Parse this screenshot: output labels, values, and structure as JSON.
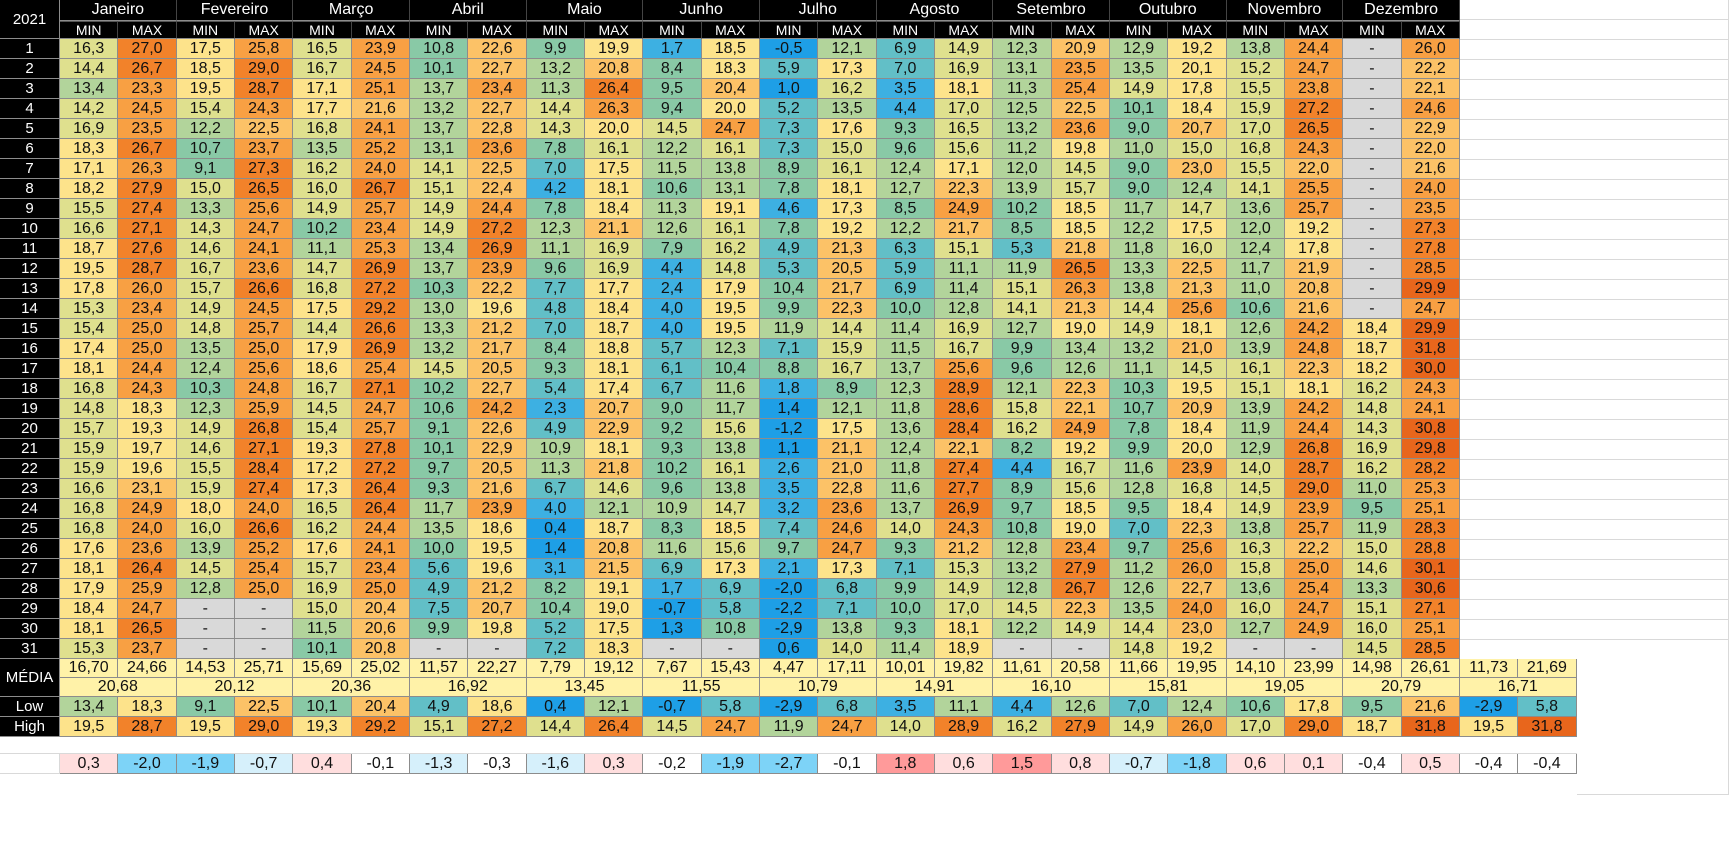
{
  "year": "2021",
  "min_label": "MIN",
  "max_label": "MAX",
  "year_header": "ANO",
  "media_label": "MÉDIA",
  "low_label": "Low",
  "high_label": "High",
  "missing": "-",
  "months": [
    {
      "name": "Janeiro",
      "min": [
        "16,3",
        "14,4",
        "13,4",
        "14,2",
        "16,9",
        "18,3",
        "17,1",
        "18,2",
        "15,5",
        "16,6",
        "18,7",
        "19,5",
        "17,8",
        "15,3",
        "15,4",
        "17,4",
        "18,1",
        "16,8",
        "14,8",
        "15,7",
        "15,9",
        "15,9",
        "16,6",
        "16,8",
        "16,8",
        "17,6",
        "18,1",
        "17,9",
        "18,4",
        "18,1",
        "15,3"
      ],
      "max": [
        "27,0",
        "26,7",
        "23,3",
        "24,5",
        "23,5",
        "26,7",
        "26,3",
        "27,9",
        "27,4",
        "27,1",
        "27,6",
        "28,7",
        "26,0",
        "23,4",
        "25,0",
        "25,0",
        "24,4",
        "24,3",
        "18,3",
        "19,3",
        "19,7",
        "19,6",
        "23,1",
        "24,9",
        "24,0",
        "23,6",
        "26,4",
        "25,9",
        "24,7",
        "26,5",
        "23,7"
      ],
      "avg_min": "16,70",
      "avg_max": "24,66",
      "avg": "20,68",
      "low_min": "13,4",
      "low_max": "18,3",
      "high_min": "19,5",
      "high_max": "28,7",
      "diff_min": "0,3",
      "diff_max": "-2,0"
    },
    {
      "name": "Fevereiro",
      "min": [
        "17,5",
        "18,5",
        "19,5",
        "15,4",
        "12,2",
        "10,7",
        "9,1",
        "15,0",
        "13,3",
        "14,3",
        "14,6",
        "16,7",
        "15,7",
        "14,9",
        "14,8",
        "13,5",
        "12,4",
        "10,3",
        "12,3",
        "14,9",
        "14,6",
        "15,5",
        "15,9",
        "18,0",
        "16,0",
        "13,9",
        "14,5",
        "12,8",
        "-",
        "-",
        "-"
      ],
      "max": [
        "25,8",
        "29,0",
        "28,7",
        "24,3",
        "22,5",
        "23,7",
        "27,3",
        "26,5",
        "25,6",
        "24,7",
        "24,1",
        "23,6",
        "26,6",
        "24,5",
        "25,7",
        "25,0",
        "25,6",
        "24,8",
        "25,9",
        "26,8",
        "27,1",
        "28,4",
        "27,4",
        "24,0",
        "26,6",
        "25,2",
        "25,4",
        "25,0",
        "-",
        "-",
        "-"
      ],
      "avg_min": "14,53",
      "avg_max": "25,71",
      "avg": "20,12",
      "low_min": "9,1",
      "low_max": "22,5",
      "high_min": "19,5",
      "high_max": "29,0",
      "diff_min": "-1,9",
      "diff_max": "-0,7"
    },
    {
      "name": "Março",
      "min": [
        "16,5",
        "16,7",
        "17,1",
        "17,7",
        "16,8",
        "13,5",
        "16,2",
        "16,0",
        "14,9",
        "10,2",
        "11,1",
        "14,7",
        "16,8",
        "17,5",
        "14,4",
        "17,9",
        "18,6",
        "16,7",
        "14,5",
        "15,4",
        "19,3",
        "17,2",
        "17,3",
        "16,5",
        "16,2",
        "17,6",
        "15,7",
        "16,9",
        "15,0",
        "11,5",
        "10,1"
      ],
      "max": [
        "23,9",
        "24,5",
        "25,1",
        "21,6",
        "24,1",
        "25,2",
        "24,0",
        "26,7",
        "25,7",
        "23,4",
        "25,3",
        "26,9",
        "27,2",
        "29,2",
        "26,6",
        "26,9",
        "25,4",
        "27,1",
        "24,7",
        "25,7",
        "27,8",
        "27,2",
        "26,4",
        "26,4",
        "24,4",
        "24,1",
        "23,4",
        "25,0",
        "20,4",
        "20,6",
        "20,8"
      ],
      "avg_min": "15,69",
      "avg_max": "25,02",
      "avg": "20,36",
      "low_min": "10,1",
      "low_max": "20,4",
      "high_min": "19,3",
      "high_max": "29,2",
      "diff_min": "0,4",
      "diff_max": "-0,1"
    },
    {
      "name": "Abril",
      "min": [
        "10,8",
        "10,1",
        "13,7",
        "13,2",
        "13,7",
        "13,1",
        "14,1",
        "15,1",
        "14,9",
        "14,9",
        "13,4",
        "13,7",
        "10,3",
        "13,0",
        "13,3",
        "13,2",
        "14,5",
        "10,2",
        "10,6",
        "9,1",
        "10,1",
        "9,7",
        "9,3",
        "11,7",
        "13,5",
        "10,0",
        "5,6",
        "4,9",
        "7,5",
        "9,9",
        "-"
      ],
      "max": [
        "22,6",
        "22,7",
        "23,4",
        "22,7",
        "22,8",
        "23,6",
        "22,5",
        "22,4",
        "24,4",
        "27,2",
        "26,9",
        "23,9",
        "22,2",
        "19,6",
        "21,2",
        "21,7",
        "20,5",
        "22,7",
        "24,2",
        "22,6",
        "22,9",
        "20,5",
        "21,6",
        "23,9",
        "18,6",
        "19,5",
        "19,6",
        "21,2",
        "20,7",
        "19,8",
        "-"
      ],
      "avg_min": "11,57",
      "avg_max": "22,27",
      "avg": "16,92",
      "low_min": "4,9",
      "low_max": "18,6",
      "high_min": "15,1",
      "high_max": "27,2",
      "diff_min": "-1,3",
      "diff_max": "-0,3"
    },
    {
      "name": "Maio",
      "min": [
        "9,9",
        "13,2",
        "11,3",
        "14,4",
        "14,3",
        "7,8",
        "7,0",
        "4,2",
        "7,8",
        "12,3",
        "11,1",
        "9,6",
        "7,7",
        "4,8",
        "7,0",
        "8,4",
        "9,3",
        "5,4",
        "2,3",
        "4,9",
        "10,9",
        "11,3",
        "6,7",
        "4,0",
        "0,4",
        "1,4",
        "3,1",
        "8,2",
        "10,4",
        "5,2",
        "7,2"
      ],
      "max": [
        "19,9",
        "20,8",
        "26,4",
        "26,3",
        "20,0",
        "16,1",
        "17,5",
        "18,1",
        "18,4",
        "21,1",
        "16,9",
        "16,9",
        "17,7",
        "18,4",
        "18,7",
        "18,8",
        "18,1",
        "17,4",
        "20,7",
        "22,9",
        "18,1",
        "21,8",
        "14,6",
        "12,1",
        "18,7",
        "20,8",
        "21,5",
        "19,1",
        "19,0",
        "17,5",
        "18,3"
      ],
      "avg_min": "7,79",
      "avg_max": "19,12",
      "avg": "13,45",
      "low_min": "0,4",
      "low_max": "12,1",
      "high_min": "14,4",
      "high_max": "26,4",
      "diff_min": "-1,6",
      "diff_max": "0,3"
    },
    {
      "name": "Junho",
      "min": [
        "1,7",
        "8,4",
        "9,5",
        "9,4",
        "14,5",
        "12,2",
        "11,5",
        "10,6",
        "11,3",
        "12,6",
        "7,9",
        "4,4",
        "2,4",
        "4,0",
        "4,0",
        "5,7",
        "6,1",
        "6,7",
        "9,0",
        "9,2",
        "9,3",
        "10,2",
        "9,6",
        "10,9",
        "8,3",
        "11,6",
        "6,9",
        "1,7",
        "-0,7",
        "1,3",
        "-"
      ],
      "max": [
        "18,5",
        "18,3",
        "20,4",
        "20,0",
        "24,7",
        "16,1",
        "13,8",
        "13,1",
        "19,1",
        "16,1",
        "16,2",
        "14,8",
        "17,9",
        "19,5",
        "19,5",
        "12,3",
        "10,4",
        "11,6",
        "11,7",
        "15,6",
        "13,8",
        "16,1",
        "13,8",
        "14,7",
        "18,5",
        "15,6",
        "17,3",
        "6,9",
        "5,8",
        "10,8",
        "-"
      ],
      "avg_min": "7,67",
      "avg_max": "15,43",
      "avg": "11,55",
      "low_min": "-0,7",
      "low_max": "5,8",
      "high_min": "14,5",
      "high_max": "24,7",
      "diff_min": "-0,2",
      "diff_max": "-1,9"
    },
    {
      "name": "Julho",
      "min": [
        "-0,5",
        "5,9",
        "1,0",
        "5,2",
        "7,3",
        "7,3",
        "8,9",
        "7,8",
        "4,6",
        "7,8",
        "4,9",
        "5,3",
        "10,4",
        "9,9",
        "11,9",
        "7,1",
        "8,8",
        "1,8",
        "1,4",
        "-1,2",
        "1,1",
        "2,6",
        "3,5",
        "3,2",
        "7,4",
        "9,7",
        "2,1",
        "-2,0",
        "-2,2",
        "-2,9",
        "0,6"
      ],
      "max": [
        "12,1",
        "17,3",
        "16,2",
        "13,5",
        "17,6",
        "15,0",
        "16,1",
        "18,1",
        "17,3",
        "19,2",
        "21,3",
        "20,5",
        "21,7",
        "22,3",
        "14,4",
        "15,9",
        "16,7",
        "8,9",
        "12,1",
        "17,5",
        "21,1",
        "21,0",
        "22,8",
        "23,6",
        "24,6",
        "24,7",
        "17,3",
        "6,8",
        "7,1",
        "13,8",
        "14,0"
      ],
      "avg_min": "4,47",
      "avg_max": "17,11",
      "avg": "10,79",
      "low_min": "-2,9",
      "low_max": "6,8",
      "high_min": "11,9",
      "high_max": "24,7",
      "diff_min": "-2,7",
      "diff_max": "-0,1"
    },
    {
      "name": "Agosto",
      "min": [
        "6,9",
        "7,0",
        "3,5",
        "4,4",
        "9,3",
        "9,6",
        "12,4",
        "12,7",
        "8,5",
        "12,2",
        "6,3",
        "5,9",
        "6,9",
        "10,0",
        "11,4",
        "11,5",
        "13,7",
        "12,3",
        "11,8",
        "13,6",
        "12,4",
        "11,8",
        "11,6",
        "13,7",
        "14,0",
        "9,3",
        "7,1",
        "9,9",
        "10,0",
        "9,3",
        "11,4"
      ],
      "max": [
        "14,9",
        "16,9",
        "18,1",
        "17,0",
        "16,5",
        "15,6",
        "17,1",
        "22,3",
        "24,9",
        "21,7",
        "15,1",
        "11,1",
        "11,4",
        "12,8",
        "16,9",
        "16,7",
        "25,6",
        "28,9",
        "28,6",
        "28,4",
        "22,1",
        "27,4",
        "27,7",
        "26,9",
        "24,3",
        "21,2",
        "15,3",
        "14,9",
        "17,0",
        "18,1",
        "18,9"
      ],
      "avg_min": "10,01",
      "avg_max": "19,82",
      "avg": "14,91",
      "low_min": "3,5",
      "low_max": "11,1",
      "high_min": "14,0",
      "high_max": "28,9",
      "diff_min": "1,8",
      "diff_max": "0,6"
    },
    {
      "name": "Setembro",
      "min": [
        "12,3",
        "13,1",
        "11,3",
        "12,5",
        "13,2",
        "11,2",
        "12,0",
        "13,9",
        "10,2",
        "8,5",
        "5,3",
        "11,9",
        "15,1",
        "14,1",
        "12,7",
        "9,9",
        "9,6",
        "12,1",
        "15,8",
        "16,2",
        "8,2",
        "4,4",
        "8,9",
        "9,7",
        "10,8",
        "12,8",
        "13,2",
        "12,8",
        "14,5",
        "12,2",
        "-"
      ],
      "max": [
        "20,9",
        "23,5",
        "25,4",
        "22,5",
        "23,6",
        "19,8",
        "14,5",
        "15,7",
        "18,5",
        "18,5",
        "21,8",
        "26,5",
        "26,3",
        "21,3",
        "19,0",
        "13,4",
        "12,6",
        "22,3",
        "22,1",
        "24,9",
        "19,2",
        "16,7",
        "15,6",
        "18,5",
        "19,0",
        "23,4",
        "27,9",
        "26,7",
        "22,3",
        "14,9",
        "-"
      ],
      "avg_min": "11,61",
      "avg_max": "20,58",
      "avg": "16,10",
      "low_min": "4,4",
      "low_max": "12,6",
      "high_min": "16,2",
      "high_max": "27,9",
      "diff_min": "1,5",
      "diff_max": "0,8"
    },
    {
      "name": "Outubro",
      "min": [
        "12,9",
        "13,5",
        "14,9",
        "10,1",
        "9,0",
        "11,0",
        "9,0",
        "9,0",
        "11,7",
        "12,2",
        "11,8",
        "13,3",
        "13,8",
        "14,4",
        "14,9",
        "13,2",
        "11,1",
        "10,3",
        "10,7",
        "7,8",
        "9,9",
        "11,6",
        "12,8",
        "9,5",
        "7,0",
        "9,7",
        "11,2",
        "12,6",
        "13,5",
        "14,4",
        "14,8"
      ],
      "max": [
        "19,2",
        "20,1",
        "17,8",
        "18,4",
        "20,7",
        "15,0",
        "23,0",
        "12,4",
        "14,7",
        "17,5",
        "16,0",
        "22,5",
        "21,3",
        "25,6",
        "18,1",
        "21,0",
        "14,5",
        "19,5",
        "20,9",
        "18,4",
        "20,0",
        "23,9",
        "16,8",
        "18,4",
        "22,3",
        "25,6",
        "26,0",
        "22,7",
        "24,0",
        "23,0",
        "19,2"
      ],
      "avg_min": "11,66",
      "avg_max": "19,95",
      "avg": "15,81",
      "low_min": "7,0",
      "low_max": "12,4",
      "high_min": "14,9",
      "high_max": "26,0",
      "diff_min": "-0,7",
      "diff_max": "-1,8"
    },
    {
      "name": "Novembro",
      "min": [
        "13,8",
        "15,2",
        "15,5",
        "15,9",
        "17,0",
        "16,8",
        "15,5",
        "14,1",
        "13,6",
        "12,0",
        "12,4",
        "11,7",
        "11,0",
        "10,6",
        "12,6",
        "13,9",
        "16,1",
        "15,1",
        "13,9",
        "11,9",
        "12,9",
        "14,0",
        "14,5",
        "14,9",
        "13,8",
        "16,3",
        "15,8",
        "13,6",
        "16,0",
        "12,7",
        "-"
      ],
      "max": [
        "24,4",
        "24,7",
        "23,8",
        "27,2",
        "26,5",
        "24,3",
        "22,0",
        "25,5",
        "25,7",
        "19,2",
        "17,8",
        "21,9",
        "20,8",
        "21,6",
        "24,2",
        "24,8",
        "22,3",
        "18,1",
        "24,2",
        "24,4",
        "26,8",
        "28,7",
        "29,0",
        "23,9",
        "25,7",
        "22,2",
        "25,0",
        "25,4",
        "24,7",
        "24,9",
        "-"
      ],
      "avg_min": "14,10",
      "avg_max": "23,99",
      "avg": "19,05",
      "low_min": "10,6",
      "low_max": "17,8",
      "high_min": "17,0",
      "high_max": "29,0",
      "diff_min": "0,6",
      "diff_max": "0,1"
    },
    {
      "name": "Dezembro",
      "min": [
        "-",
        "-",
        "-",
        "-",
        "-",
        "-",
        "-",
        "-",
        "-",
        "-",
        "-",
        "-",
        "-",
        "-",
        "18,4",
        "18,7",
        "18,2",
        "16,2",
        "14,8",
        "14,3",
        "16,9",
        "16,2",
        "11,0",
        "9,5",
        "11,9",
        "15,0",
        "14,6",
        "13,3",
        "15,1",
        "16,0",
        "14,5"
      ],
      "max": [
        "26,0",
        "22,2",
        "22,1",
        "24,6",
        "22,9",
        "22,0",
        "21,6",
        "24,0",
        "23,5",
        "27,3",
        "27,8",
        "28,5",
        "29,9",
        "24,7",
        "29,9",
        "31,8",
        "30,0",
        "24,3",
        "24,1",
        "30,8",
        "29,8",
        "28,2",
        "25,3",
        "25,1",
        "28,3",
        "28,8",
        "30,1",
        "30,6",
        "27,1",
        "25,1",
        "28,5"
      ],
      "avg_min": "14,98",
      "avg_max": "26,61",
      "avg": "20,79",
      "low_min": "9,5",
      "low_max": "21,6",
      "high_min": "18,7",
      "high_max": "31,8",
      "diff_min": "-0,4",
      "diff_max": "0,5"
    }
  ],
  "year_summary": {
    "avg_min": "11,73",
    "avg_max": "21,69",
    "avg": "16,71",
    "low_min": "-2,9",
    "low_max": "5,8",
    "high_min": "19,5",
    "high_max": "31,8",
    "diff_min": "-0,4",
    "diff_max": "-0,4"
  },
  "colors": {
    "header_bg": "#000000",
    "header_text": "#ffffff",
    "missing": "#d9d9d9",
    "avg_row": "#fff2a8",
    "scale": [
      "#1e9fe6",
      "#3db0e2",
      "#62bfc7",
      "#89c9a6",
      "#b2d49b",
      "#dfe08e",
      "#fde38b",
      "#fcc267",
      "#f8a043",
      "#f2822a",
      "#e8661c"
    ],
    "diff_pos": "#ffdede",
    "diff_pos_strong": "#ff9a9a",
    "diff_neg": "#d6f0fb",
    "diff_neg_strong": "#7dd3f7"
  }
}
